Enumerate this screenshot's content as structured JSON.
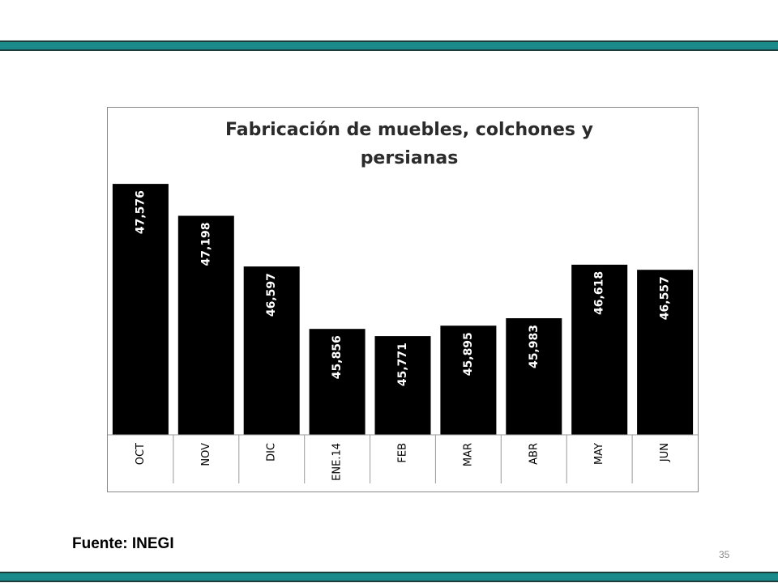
{
  "slide": {
    "source": "Fuente: INEGI",
    "page_number": "35",
    "band_color": "#1a8a8a"
  },
  "chart_data": {
    "type": "bar",
    "title_lines": [
      "Fabricación de muebles, colchones y",
      "persianas"
    ],
    "categories": [
      "OCT",
      "NOV",
      "DIC",
      "ENE.14",
      "FEB",
      "MAR",
      "ABR",
      "MAY",
      "JUN"
    ],
    "values": [
      47576,
      47198,
      46597,
      45856,
      45771,
      45895,
      45983,
      46618,
      46557
    ],
    "value_labels": [
      "47,576",
      "47,198",
      "46,597",
      "45,856",
      "45,771",
      "45,895",
      "45,983",
      "46,618",
      "46,557"
    ],
    "ylim": [
      44600,
      48000
    ],
    "bar_color": "#000000",
    "grid": false,
    "legend": "none"
  }
}
